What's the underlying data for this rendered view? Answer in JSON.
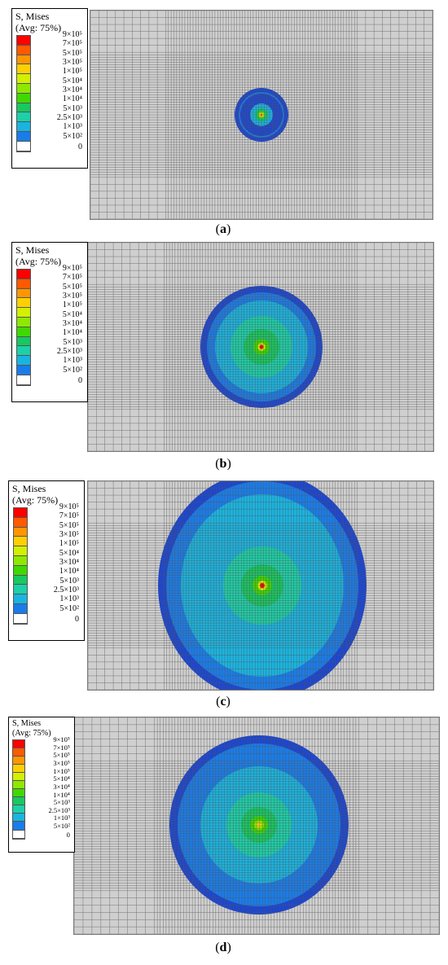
{
  "legend": {
    "title_line1": "S, Mises",
    "title_line2": "(Avg: 75%)",
    "labels": [
      "9×10⁵",
      "7×10⁵",
      "5×10⁵",
      "3×10⁵",
      "1×10⁵",
      "5×10⁴",
      "3×10⁴",
      "1×10⁴",
      "5×10³",
      "2.5×10³",
      "1×10³",
      "5×10²",
      "0"
    ],
    "colors": [
      "#ff0000",
      "#ff5a00",
      "#ff9600",
      "#ffd000",
      "#d2f000",
      "#8ee800",
      "#40d800",
      "#18c860",
      "#1cd0a8",
      "#1ab4e0",
      "#1a7ce8",
      "#1c46d0",
      "#ffffff"
    ]
  },
  "panels": [
    {
      "id": "a",
      "caption_open": "(",
      "caption_letter": "a",
      "caption_close": ")"
    },
    {
      "id": "b",
      "caption_open": "(",
      "caption_letter": "b",
      "caption_close": ")"
    },
    {
      "id": "c",
      "caption_open": "(",
      "caption_letter": "c",
      "caption_close": ")"
    },
    {
      "id": "d",
      "caption_open": "(",
      "caption_letter": "d",
      "caption_close": ")"
    }
  ]
}
